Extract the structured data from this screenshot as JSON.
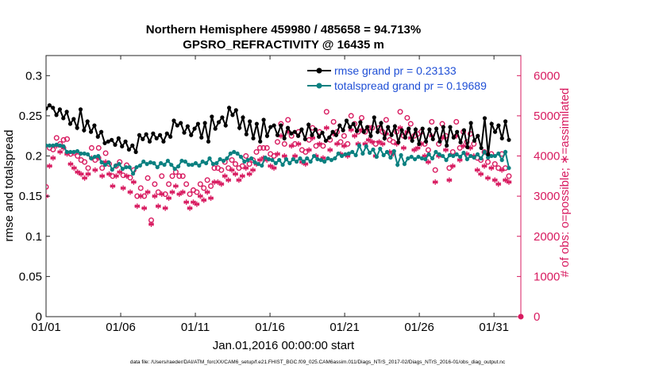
{
  "chart_data": {
    "type": "line",
    "title_line1": "Northern Hemisphere 459980 / 485658 = 94.713%",
    "title_line2": "GPSRO_REFRACTIVITY @ 16435 m",
    "xlabel": "Jan.01,2016 00:00:00 start",
    "ylabel_left": "rmse and totalspread",
    "ylabel_right": "# of obs: o=possible; ∗=assimilated",
    "footer": "data file: /Users/raeder/DAI/ATM_forcXX/CAM6_setup/f.e21.FHIST_BGC.f09_025.CAM6assim.011/Diags_NTrS_2017-02/Diags_NTrS_2016-01/obs_diag_output.nc",
    "xlim": [
      0,
      31.8
    ],
    "ylim_left": [
      0,
      0.325
    ],
    "ylim_right": [
      0,
      6500
    ],
    "xticks": [
      0,
      5,
      10,
      15,
      20,
      25,
      30
    ],
    "xtick_labels": [
      "01/01",
      "01/06",
      "01/11",
      "01/16",
      "01/21",
      "01/26",
      "01/31"
    ],
    "yticks_left": [
      0,
      0.05,
      0.1,
      0.15,
      0.2,
      0.25,
      0.3
    ],
    "ytick_labels_left": [
      "0",
      "0.05",
      "0.1",
      "0.15",
      "0.2",
      "0.25",
      "0.3"
    ],
    "yticks_right": [
      0,
      1000,
      2000,
      3000,
      4000,
      5000,
      6000
    ],
    "ytick_labels_right": [
      "0",
      "1000",
      "2000",
      "3000",
      "4000",
      "5000",
      "6000"
    ],
    "grid": false,
    "legend_position": "top-right",
    "colors": {
      "rmse": "#000000",
      "spread": "#0a8080",
      "obs": "#d81b60",
      "legend_text": "#1f4fd6"
    },
    "series": [
      {
        "name": "rmse grand pr = 0.23133",
        "axis": "left",
        "y": [
          0.259,
          0.263,
          0.26,
          0.251,
          0.258,
          0.247,
          0.255,
          0.24,
          0.246,
          0.235,
          0.258,
          0.232,
          0.243,
          0.23,
          0.238,
          0.224,
          0.23,
          0.216,
          0.218,
          0.22,
          0.214,
          0.222,
          0.212,
          0.218,
          0.208,
          0.213,
          0.205,
          0.226,
          0.221,
          0.227,
          0.218,
          0.228,
          0.222,
          0.226,
          0.218,
          0.228,
          0.224,
          0.244,
          0.238,
          0.241,
          0.229,
          0.237,
          0.226,
          0.234,
          0.24,
          0.223,
          0.241,
          0.218,
          0.249,
          0.234,
          0.242,
          0.248,
          0.238,
          0.26,
          0.251,
          0.257,
          0.235,
          0.248,
          0.227,
          0.243,
          0.222,
          0.24,
          0.218,
          0.245,
          0.225,
          0.236,
          0.238,
          0.226,
          0.238,
          0.222,
          0.235,
          0.228,
          0.23,
          0.225,
          0.233,
          0.221,
          0.239,
          0.226,
          0.233,
          0.224,
          0.229,
          0.219,
          0.223,
          0.23,
          0.226,
          0.238,
          0.232,
          0.244,
          0.236,
          0.24,
          0.231,
          0.242,
          0.23,
          0.236,
          0.225,
          0.248,
          0.23,
          0.241,
          0.222,
          0.236,
          0.226,
          0.237,
          0.217,
          0.232,
          0.223,
          0.234,
          0.219,
          0.233,
          0.215,
          0.234,
          0.218,
          0.233,
          0.221,
          0.234,
          0.218,
          0.236,
          0.213,
          0.236,
          0.223,
          0.23,
          0.217,
          0.232,
          0.211,
          0.241,
          0.219,
          0.225,
          0.21,
          0.247,
          0.202,
          0.24,
          0.23,
          0.238,
          0.222,
          0.243,
          0.22
        ]
      },
      {
        "name": "totalspread grand pr = 0.19689",
        "axis": "left",
        "y": [
          0.213,
          0.213,
          0.213,
          0.214,
          0.213,
          0.212,
          0.205,
          0.205,
          0.205,
          0.206,
          0.203,
          0.203,
          0.202,
          0.197,
          0.199,
          0.2,
          0.192,
          0.189,
          0.192,
          0.183,
          0.188,
          0.19,
          0.184,
          0.186,
          0.186,
          0.178,
          0.186,
          0.188,
          0.193,
          0.19,
          0.192,
          0.191,
          0.186,
          0.191,
          0.189,
          0.194,
          0.189,
          0.184,
          0.187,
          0.194,
          0.193,
          0.189,
          0.189,
          0.191,
          0.188,
          0.193,
          0.191,
          0.197,
          0.19,
          0.191,
          0.196,
          0.194,
          0.197,
          0.203,
          0.205,
          0.203,
          0.199,
          0.193,
          0.195,
          0.197,
          0.192,
          0.19,
          0.188,
          0.198,
          0.196,
          0.195,
          0.191,
          0.195,
          0.189,
          0.196,
          0.191,
          0.196,
          0.193,
          0.197,
          0.193,
          0.197,
          0.193,
          0.2,
          0.196,
          0.195,
          0.193,
          0.197,
          0.195,
          0.197,
          0.203,
          0.2,
          0.202,
          0.203,
          0.205,
          0.201,
          0.213,
          0.203,
          0.212,
          0.204,
          0.208,
          0.199,
          0.209,
          0.201,
          0.205,
          0.198,
          0.206,
          0.189,
          0.201,
          0.19,
          0.197,
          0.199,
          0.196,
          0.199,
          0.197,
          0.196,
          0.202,
          0.197,
          0.205,
          0.202,
          0.2,
          0.195,
          0.201,
          0.2,
          0.202,
          0.199,
          0.204,
          0.196,
          0.2,
          0.198,
          0.202,
          0.197,
          0.205,
          0.198,
          0.2,
          0.2,
          0.203,
          0.195,
          0.205,
          0.185
        ]
      },
      {
        "name": "obs possible",
        "axis": "right",
        "marker": "o",
        "y": [
          3230,
          4200,
          4160,
          4450,
          4300,
          4400,
          4420,
          4050,
          4080,
          4000,
          3900,
          3850,
          3700,
          4200,
          3900,
          4200,
          3700,
          4070,
          3800,
          3500,
          3750,
          3850,
          3520,
          3770,
          3460,
          3650,
          3000,
          3200,
          3000,
          3450,
          2400,
          3300,
          3100,
          3500,
          3050,
          3300,
          3500,
          3600,
          3500,
          3500,
          3300,
          3050,
          3150,
          3100,
          3300,
          3200,
          3400,
          3250,
          3700,
          3700,
          3650,
          3850,
          3700,
          3900,
          3800,
          3700,
          3750,
          4000,
          3800,
          3900,
          4100,
          4200,
          4200,
          4200,
          4050,
          4000,
          4350,
          4800,
          4300,
          4900,
          4500,
          4300,
          4600,
          4150,
          4100,
          4400,
          4700,
          4250,
          4600,
          4250,
          5100,
          4400,
          4850,
          4600,
          4350,
          4500,
          4300,
          5000,
          4800,
          4600,
          4950,
          4600,
          4700,
          4700,
          4300,
          4700,
          4600,
          4900,
          4400,
          4350,
          4600,
          5100,
          4500,
          4950,
          4800,
          4500,
          4550,
          4600,
          4300,
          4150,
          4850,
          3650,
          4300,
          4800,
          4500,
          3700,
          4100,
          4850,
          4200,
          4600,
          4350,
          4550,
          4300,
          3950,
          3900,
          4100,
          3850,
          4050,
          3800,
          3700,
          4050,
          3700,
          3500
        ]
      },
      {
        "name": "obs assimilated",
        "axis": "right",
        "marker": "*",
        "y": [
          3000,
          3750,
          3950,
          4250,
          4100,
          4200,
          4050,
          3800,
          3700,
          3600,
          3550,
          3450,
          3550,
          3950,
          3650,
          3950,
          3500,
          3850,
          3550,
          3250,
          3500,
          3600,
          3200,
          3500,
          3100,
          3350,
          2750,
          3000,
          2700,
          3100,
          2300,
          3000,
          2750,
          3050,
          2700,
          2950,
          3100,
          3250,
          3050,
          3100,
          2850,
          2700,
          2850,
          2800,
          3000,
          2900,
          3100,
          2950,
          3350,
          3350,
          3300,
          3500,
          3400,
          3650,
          3550,
          3400,
          3500,
          3700,
          3550,
          3650,
          3800,
          3900,
          3950,
          3900,
          3750,
          3700,
          4050,
          4500,
          4000,
          4600,
          4250,
          4000,
          4300,
          3850,
          3800,
          4150,
          4450,
          4000,
          4300,
          3950,
          4700,
          4150,
          4550,
          4300,
          4050,
          4250,
          4000,
          4650,
          4500,
          4300,
          4650,
          4300,
          4400,
          4350,
          4000,
          4350,
          4300,
          4550,
          4100,
          4050,
          4300,
          4700,
          4200,
          4600,
          4450,
          4150,
          4200,
          4300,
          4000,
          3850,
          4500,
          3350,
          4000,
          4450,
          4150,
          3400,
          3750,
          4500,
          3900,
          4250,
          4050,
          4200,
          4000,
          3650,
          3550,
          3750,
          3450,
          3700,
          3400,
          3300,
          3650,
          3400,
          3350
        ]
      }
    ]
  }
}
